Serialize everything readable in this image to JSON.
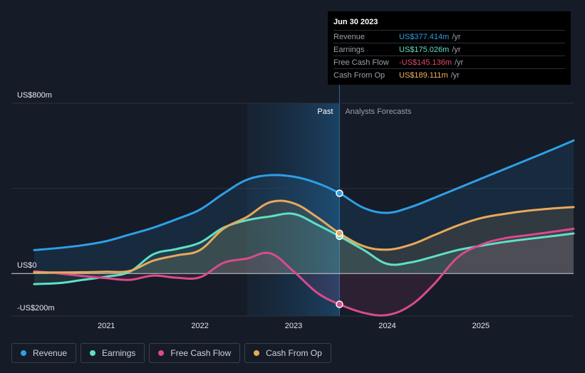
{
  "tooltip": {
    "date": "Jun 30 2023",
    "rows": [
      {
        "label": "Revenue",
        "value": "US$377.414m",
        "unit": "/yr",
        "color": "#2e9fe6"
      },
      {
        "label": "Earnings",
        "value": "US$175.026m",
        "unit": "/yr",
        "color": "#5fe0c5"
      },
      {
        "label": "Free Cash Flow",
        "value": "-US$145.136m",
        "unit": "/yr",
        "color": "#e2476a"
      },
      {
        "label": "Cash From Op",
        "value": "US$189.111m",
        "unit": "/yr",
        "color": "#f2b35d"
      }
    ]
  },
  "legend": [
    {
      "label": "Revenue",
      "color": "#2e9fe6"
    },
    {
      "label": "Earnings",
      "color": "#5fe0c5"
    },
    {
      "label": "Free Cash Flow",
      "color": "#d84b8c"
    },
    {
      "label": "Cash From Op",
      "color": "#e8a95a"
    }
  ],
  "chart_data": {
    "type": "line",
    "y_unit": "US$m",
    "ylim": [
      -200,
      800
    ],
    "y_tick_labels": [
      {
        "value": 800,
        "label": "US$800m"
      },
      {
        "value": 0,
        "label": "US$0"
      },
      {
        "value": -200,
        "label": "-US$200m"
      }
    ],
    "x_tick_labels": [
      "2021",
      "2022",
      "2023",
      "2024",
      "2025"
    ],
    "x_ticks": [
      2021.0,
      2022.0,
      2023.0,
      2024.0,
      2025.0
    ],
    "xlim": [
      2020.23,
      2025.99
    ],
    "past_label": "Past",
    "forecast_label": "Analysts Forecasts",
    "past_region_start": 2022.5,
    "forecast_start": 2023.49,
    "grid": true,
    "legend_position": "bottom",
    "series": [
      {
        "name": "Revenue",
        "color": "#2e9fe6",
        "x": [
          2020.23,
          2020.5,
          2020.75,
          2021.0,
          2021.25,
          2021.5,
          2021.75,
          2022.0,
          2022.25,
          2022.5,
          2022.75,
          2023.0,
          2023.25,
          2023.49,
          2023.75,
          2024.0,
          2024.25,
          2024.5,
          2024.75,
          2025.0,
          2025.25,
          2025.5,
          2025.75,
          2025.99
        ],
        "y": [
          110,
          120,
          133,
          152,
          183,
          215,
          255,
          300,
          375,
          440,
          462,
          455,
          425,
          377,
          308,
          285,
          312,
          355,
          400,
          445,
          490,
          535,
          580,
          625
        ]
      },
      {
        "name": "Earnings",
        "color": "#5fe0c5",
        "x": [
          2020.23,
          2020.5,
          2020.75,
          2021.0,
          2021.25,
          2021.5,
          2021.75,
          2022.0,
          2022.25,
          2022.5,
          2022.75,
          2023.0,
          2023.25,
          2023.49,
          2023.75,
          2024.0,
          2024.25,
          2024.5,
          2024.75,
          2025.0,
          2025.25,
          2025.5,
          2025.75,
          2025.99
        ],
        "y": [
          -50,
          -45,
          -30,
          -15,
          8,
          90,
          115,
          145,
          215,
          250,
          268,
          280,
          230,
          175,
          110,
          45,
          52,
          80,
          110,
          130,
          148,
          162,
          175,
          188
        ]
      },
      {
        "name": "Free Cash Flow",
        "color": "#d84b8c",
        "x": [
          2020.23,
          2020.5,
          2020.75,
          2021.0,
          2021.25,
          2021.5,
          2021.75,
          2022.0,
          2022.25,
          2022.5,
          2022.75,
          2023.0,
          2023.25,
          2023.49,
          2023.75,
          2024.0,
          2024.25,
          2024.5,
          2024.75,
          2025.0,
          2025.25,
          2025.5,
          2025.75,
          2025.99
        ],
        "y": [
          10,
          0,
          -12,
          -22,
          -30,
          -10,
          -20,
          -18,
          50,
          70,
          95,
          10,
          -90,
          -145,
          -185,
          -195,
          -150,
          -50,
          75,
          135,
          165,
          180,
          195,
          210
        ]
      },
      {
        "name": "Cash From Op",
        "color": "#e8a95a",
        "x": [
          2020.23,
          2020.5,
          2020.75,
          2021.0,
          2021.25,
          2021.5,
          2021.75,
          2022.0,
          2022.25,
          2022.5,
          2022.75,
          2023.0,
          2023.25,
          2023.49,
          2023.75,
          2024.0,
          2024.25,
          2024.5,
          2024.75,
          2025.0,
          2025.25,
          2025.5,
          2025.75,
          2025.99
        ],
        "y": [
          5,
          5,
          6,
          8,
          12,
          60,
          85,
          110,
          210,
          265,
          335,
          330,
          265,
          189,
          128,
          112,
          135,
          180,
          225,
          260,
          280,
          295,
          305,
          312
        ]
      }
    ]
  }
}
